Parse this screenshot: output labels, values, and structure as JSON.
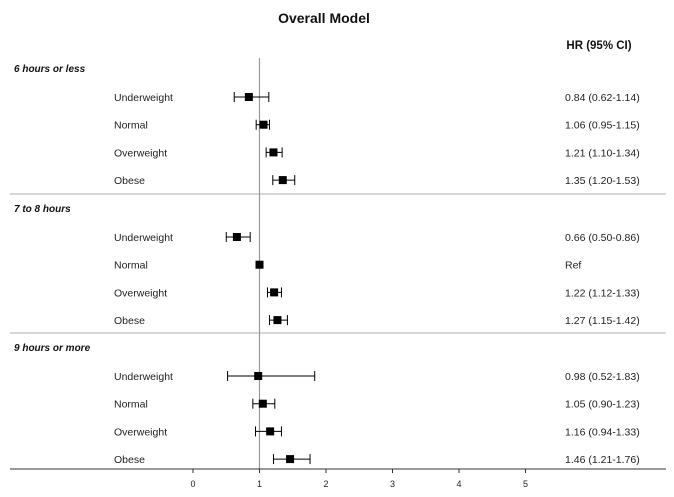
{
  "chart_data": {
    "type": "forest",
    "title": "Overall Model",
    "value_header": "HR (95% CI)",
    "reference_value": 1,
    "xlim": [
      -1,
      5.3
    ],
    "x_ticks": [
      0,
      1,
      2,
      3,
      4,
      5
    ],
    "groups": [
      {
        "label": "6 hours or less",
        "rows": [
          {
            "category": "Underweight",
            "hr": 0.84,
            "lower": 0.62,
            "upper": 1.14,
            "text": "0.84 (0.62-1.14)"
          },
          {
            "category": "Normal",
            "hr": 1.06,
            "lower": 0.95,
            "upper": 1.15,
            "text": "1.06 (0.95-1.15)"
          },
          {
            "category": "Overweight",
            "hr": 1.21,
            "lower": 1.1,
            "upper": 1.34,
            "text": "1.21 (1.10-1.34)"
          },
          {
            "category": "Obese",
            "hr": 1.35,
            "lower": 1.2,
            "upper": 1.53,
            "text": "1.35 (1.20-1.53)"
          }
        ]
      },
      {
        "label": "7 to 8 hours",
        "rows": [
          {
            "category": "Underweight",
            "hr": 0.66,
            "lower": 0.5,
            "upper": 0.86,
            "text": "0.66 (0.50-0.86)"
          },
          {
            "category": "Normal",
            "hr": 1.0,
            "lower": 1.0,
            "upper": 1.0,
            "text": "Ref"
          },
          {
            "category": "Overweight",
            "hr": 1.22,
            "lower": 1.12,
            "upper": 1.33,
            "text": "1.22 (1.12-1.33)"
          },
          {
            "category": "Obese",
            "hr": 1.27,
            "lower": 1.15,
            "upper": 1.42,
            "text": "1.27 (1.15-1.42)"
          }
        ]
      },
      {
        "label": "9 hours or more",
        "rows": [
          {
            "category": "Underweight",
            "hr": 0.98,
            "lower": 0.52,
            "upper": 1.83,
            "text": "0.98 (0.52-1.83)"
          },
          {
            "category": "Normal",
            "hr": 1.05,
            "lower": 0.9,
            "upper": 1.23,
            "text": "1.05 (0.90-1.23)"
          },
          {
            "category": "Overweight",
            "hr": 1.16,
            "lower": 0.94,
            "upper": 1.33,
            "text": "1.16 (0.94-1.33)"
          },
          {
            "category": "Obese",
            "hr": 1.46,
            "lower": 1.21,
            "upper": 1.76,
            "text": "1.46 (1.21-1.76)"
          }
        ]
      }
    ],
    "colors": {
      "marker": "#000000",
      "reference_line": "#999999",
      "separator": "#c8c8c8",
      "axis": "#333333"
    }
  }
}
